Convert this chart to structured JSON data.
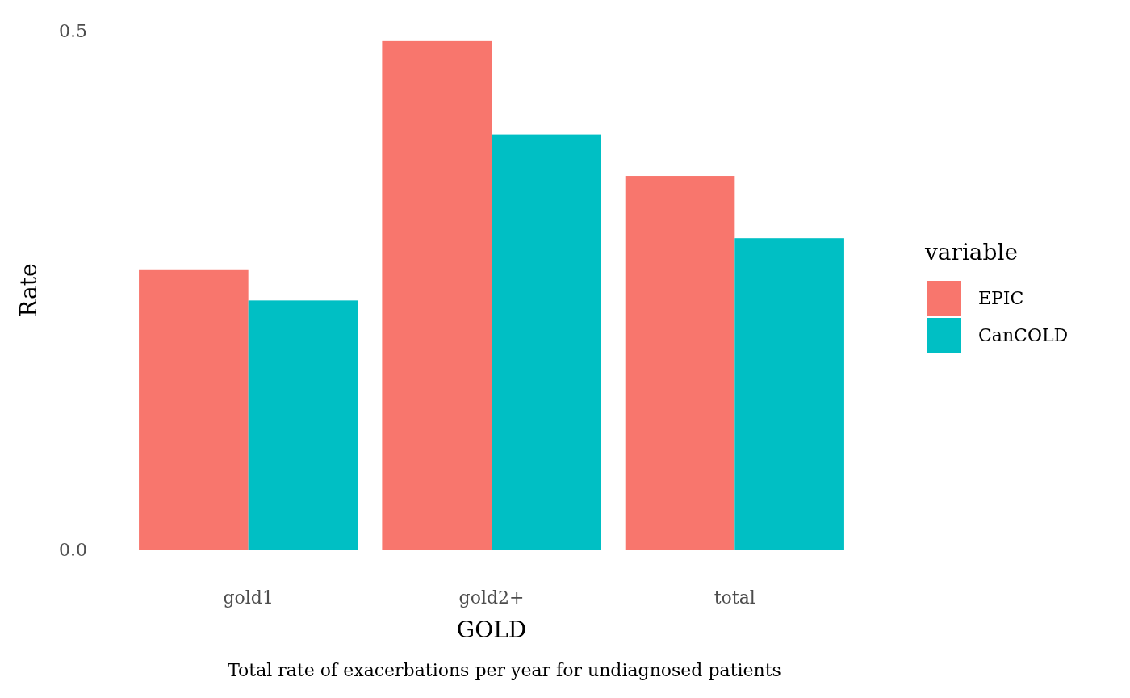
{
  "chart_data": {
    "type": "bar",
    "categories": [
      "gold1",
      "gold2+",
      "total"
    ],
    "series": [
      {
        "name": "EPIC",
        "color": "#f8766d",
        "values": [
          0.27,
          0.49,
          0.36
        ]
      },
      {
        "name": "CanCOLD",
        "color": "#00bfc4",
        "values": [
          0.24,
          0.4,
          0.3
        ]
      }
    ],
    "xlabel": "GOLD",
    "ylabel": "Rate",
    "legend_title": "variable",
    "legend": "right",
    "ylim": [
      0,
      0.5
    ],
    "yticks": [
      {
        "value": 0,
        "label": "0.0"
      },
      {
        "value": 0.5,
        "label": "0.5"
      }
    ],
    "grid": false,
    "annotations": [
      "Total rate of exacerbations per year for undiagnosed patients"
    ]
  }
}
